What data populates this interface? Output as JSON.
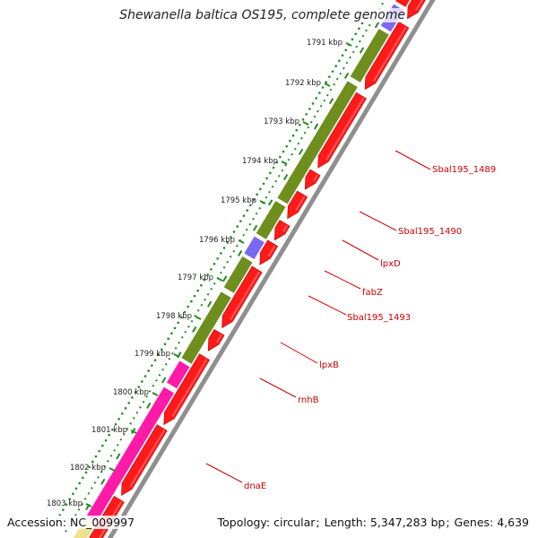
{
  "title": "Shewanella baltica OS195, complete genome",
  "accession": "Accession: NC_009997",
  "topology": "Topology: circular",
  "length": "Length: 5,347,283 bp",
  "genes_count": "Genes: 4,639",
  "colors": {
    "backbone": "#8f8f8f",
    "forward": "#ff1a1a",
    "reverse_green": "#6e8e1e",
    "reverse_purple": "#7b68ee",
    "reverse_magenta": "#ff1aa8",
    "reverse_yellow": "#efe28a",
    "ticks": "#228b22",
    "label": "#cc0000"
  },
  "ticks": [
    {
      "label": "1791 kbp"
    },
    {
      "label": "1792 kbp"
    },
    {
      "label": "1793 kbp"
    },
    {
      "label": "1794 kbp"
    },
    {
      "label": "1795 kbp"
    },
    {
      "label": "1796 kbp"
    },
    {
      "label": "1797 kbp"
    },
    {
      "label": "1798 kbp"
    },
    {
      "label": "1799 kbp"
    },
    {
      "label": "1800 kbp"
    },
    {
      "label": "1801 kbp"
    },
    {
      "label": "1802 kbp"
    },
    {
      "label": "1803 kbp"
    }
  ],
  "gene_labels": [
    "Sbal195_1489",
    "Sbal195_1490",
    "lpxD",
    "fabZ",
    "Sbal195_1493",
    "lpxB",
    "rnhB",
    "dnaE"
  ]
}
